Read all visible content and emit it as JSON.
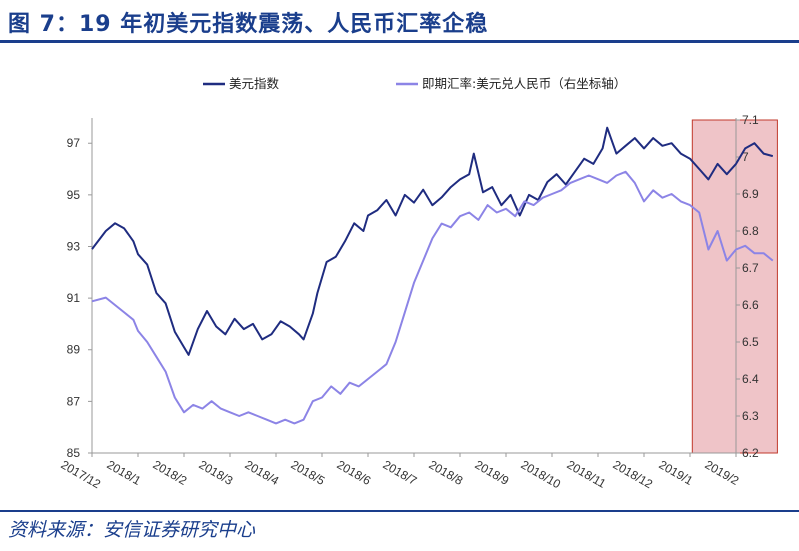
{
  "title": "图 7：19 年初美元指数震荡、人民币汇率企稳",
  "source": "资料来源：安信证券研究中心",
  "chart_data": {
    "type": "line",
    "x_labels": [
      "2017/12",
      "2018/1",
      "2018/2",
      "2018/3",
      "2018/4",
      "2018/5",
      "2018/6",
      "2018/7",
      "2018/8",
      "2018/9",
      "2018/10",
      "2018/11",
      "2018/12",
      "2019/1",
      "2019/2"
    ],
    "y_left": {
      "ticks": [
        85,
        87,
        89,
        91,
        93,
        95,
        97
      ],
      "lim": [
        85,
        97.9
      ]
    },
    "y_right": {
      "ticks": [
        "6.2",
        "6.3",
        "6.4",
        "6.5",
        "6.6",
        "6.7",
        "6.8",
        "6.9",
        "7",
        "7.1"
      ],
      "lim": [
        6.2,
        7.1
      ]
    },
    "highlight": {
      "from": 13.05,
      "to": 14.9,
      "color": "#efc4c8"
    },
    "grid": false,
    "legend_position": "top",
    "series": [
      {
        "name": "美元指数",
        "axis": "left",
        "color": "#1f2c80",
        "points": [
          [
            0,
            92.9
          ],
          [
            0.3,
            93.6
          ],
          [
            0.5,
            93.9
          ],
          [
            0.7,
            93.7
          ],
          [
            0.9,
            93.2
          ],
          [
            1.0,
            92.7
          ],
          [
            1.2,
            92.3
          ],
          [
            1.4,
            91.2
          ],
          [
            1.6,
            90.8
          ],
          [
            1.8,
            89.7
          ],
          [
            2.0,
            89.1
          ],
          [
            2.1,
            88.8
          ],
          [
            2.3,
            89.8
          ],
          [
            2.5,
            90.5
          ],
          [
            2.7,
            89.9
          ],
          [
            2.9,
            89.6
          ],
          [
            3.1,
            90.2
          ],
          [
            3.3,
            89.8
          ],
          [
            3.5,
            90.0
          ],
          [
            3.7,
            89.4
          ],
          [
            3.9,
            89.6
          ],
          [
            4.1,
            90.1
          ],
          [
            4.3,
            89.9
          ],
          [
            4.5,
            89.6
          ],
          [
            4.6,
            89.4
          ],
          [
            4.8,
            90.4
          ],
          [
            4.9,
            91.2
          ],
          [
            5.1,
            92.4
          ],
          [
            5.3,
            92.6
          ],
          [
            5.5,
            93.2
          ],
          [
            5.7,
            93.9
          ],
          [
            5.9,
            93.6
          ],
          [
            6.0,
            94.2
          ],
          [
            6.2,
            94.4
          ],
          [
            6.4,
            94.8
          ],
          [
            6.6,
            94.2
          ],
          [
            6.8,
            95.0
          ],
          [
            7.0,
            94.7
          ],
          [
            7.2,
            95.2
          ],
          [
            7.4,
            94.6
          ],
          [
            7.6,
            94.9
          ],
          [
            7.8,
            95.3
          ],
          [
            8.0,
            95.6
          ],
          [
            8.2,
            95.8
          ],
          [
            8.3,
            96.6
          ],
          [
            8.5,
            95.1
          ],
          [
            8.7,
            95.3
          ],
          [
            8.9,
            94.6
          ],
          [
            9.1,
            95.0
          ],
          [
            9.3,
            94.2
          ],
          [
            9.5,
            95.0
          ],
          [
            9.7,
            94.8
          ],
          [
            9.9,
            95.5
          ],
          [
            10.1,
            95.8
          ],
          [
            10.3,
            95.4
          ],
          [
            10.5,
            95.9
          ],
          [
            10.7,
            96.4
          ],
          [
            10.9,
            96.2
          ],
          [
            11.1,
            96.8
          ],
          [
            11.2,
            97.6
          ],
          [
            11.4,
            96.6
          ],
          [
            11.6,
            96.9
          ],
          [
            11.8,
            97.2
          ],
          [
            12.0,
            96.8
          ],
          [
            12.2,
            97.2
          ],
          [
            12.4,
            96.9
          ],
          [
            12.6,
            97.0
          ],
          [
            12.8,
            96.6
          ],
          [
            13.0,
            96.4
          ],
          [
            13.2,
            96.0
          ],
          [
            13.4,
            95.6
          ],
          [
            13.6,
            96.2
          ],
          [
            13.8,
            95.8
          ],
          [
            14.0,
            96.2
          ],
          [
            14.2,
            96.8
          ],
          [
            14.4,
            97.0
          ],
          [
            14.6,
            96.6
          ],
          [
            14.8,
            96.5
          ]
        ]
      },
      {
        "name": "即期汇率:美元兑人民币（右坐标轴）",
        "axis": "right",
        "color": "#8c84e6",
        "points": [
          [
            0,
            6.61
          ],
          [
            0.3,
            6.62
          ],
          [
            0.5,
            6.6
          ],
          [
            0.7,
            6.58
          ],
          [
            0.9,
            6.56
          ],
          [
            1.0,
            6.53
          ],
          [
            1.2,
            6.5
          ],
          [
            1.4,
            6.46
          ],
          [
            1.6,
            6.42
          ],
          [
            1.8,
            6.35
          ],
          [
            2.0,
            6.31
          ],
          [
            2.2,
            6.33
          ],
          [
            2.4,
            6.32
          ],
          [
            2.6,
            6.34
          ],
          [
            2.8,
            6.32
          ],
          [
            3.0,
            6.31
          ],
          [
            3.2,
            6.3
          ],
          [
            3.4,
            6.31
          ],
          [
            3.6,
            6.3
          ],
          [
            3.8,
            6.29
          ],
          [
            4.0,
            6.28
          ],
          [
            4.2,
            6.29
          ],
          [
            4.4,
            6.28
          ],
          [
            4.6,
            6.29
          ],
          [
            4.8,
            6.34
          ],
          [
            5.0,
            6.35
          ],
          [
            5.2,
            6.38
          ],
          [
            5.4,
            6.36
          ],
          [
            5.6,
            6.39
          ],
          [
            5.8,
            6.38
          ],
          [
            6.0,
            6.4
          ],
          [
            6.2,
            6.42
          ],
          [
            6.4,
            6.44
          ],
          [
            6.6,
            6.5
          ],
          [
            6.8,
            6.58
          ],
          [
            7.0,
            6.66
          ],
          [
            7.2,
            6.72
          ],
          [
            7.4,
            6.78
          ],
          [
            7.6,
            6.82
          ],
          [
            7.8,
            6.81
          ],
          [
            8.0,
            6.84
          ],
          [
            8.2,
            6.85
          ],
          [
            8.4,
            6.83
          ],
          [
            8.6,
            6.87
          ],
          [
            8.8,
            6.85
          ],
          [
            9.0,
            6.86
          ],
          [
            9.2,
            6.84
          ],
          [
            9.4,
            6.88
          ],
          [
            9.6,
            6.87
          ],
          [
            9.8,
            6.89
          ],
          [
            10.0,
            6.9
          ],
          [
            10.2,
            6.91
          ],
          [
            10.4,
            6.93
          ],
          [
            10.6,
            6.94
          ],
          [
            10.8,
            6.95
          ],
          [
            11.0,
            6.94
          ],
          [
            11.2,
            6.93
          ],
          [
            11.4,
            6.95
          ],
          [
            11.6,
            6.96
          ],
          [
            11.8,
            6.93
          ],
          [
            12.0,
            6.88
          ],
          [
            12.2,
            6.91
          ],
          [
            12.4,
            6.89
          ],
          [
            12.6,
            6.9
          ],
          [
            12.8,
            6.88
          ],
          [
            13.0,
            6.87
          ],
          [
            13.2,
            6.85
          ],
          [
            13.4,
            6.75
          ],
          [
            13.6,
            6.8
          ],
          [
            13.8,
            6.72
          ],
          [
            14.0,
            6.75
          ],
          [
            14.2,
            6.76
          ],
          [
            14.4,
            6.74
          ],
          [
            14.6,
            6.74
          ],
          [
            14.8,
            6.72
          ]
        ]
      }
    ]
  }
}
